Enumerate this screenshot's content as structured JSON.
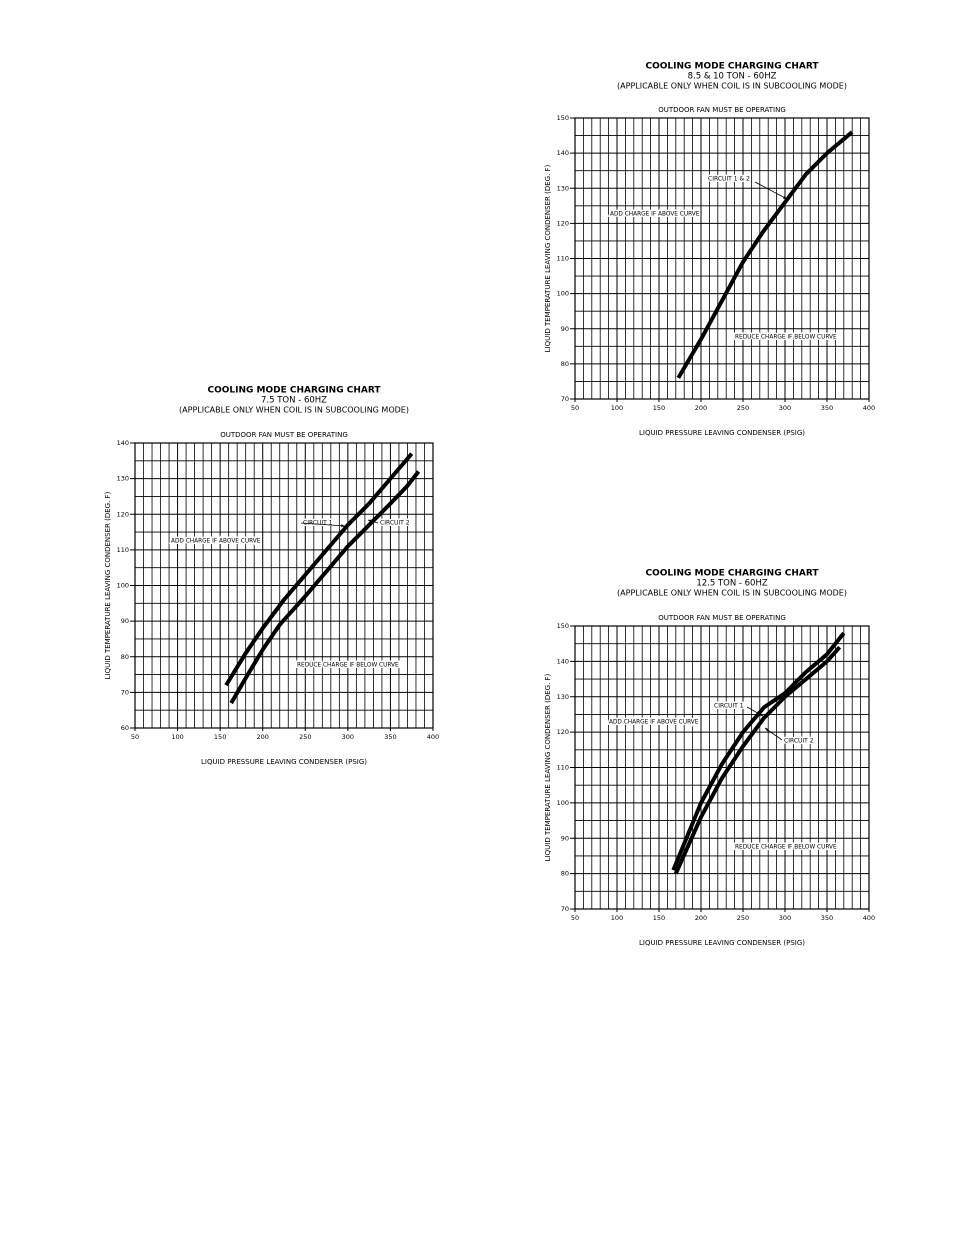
{
  "chart_data": [
    {
      "type": "line",
      "title": "COOLING MODE CHARGING CHART",
      "subtitle": "7.5 TON - 60HZ",
      "note": "(APPLICABLE ONLY WHEN COIL IS IN SUBCOOLING MODE)",
      "header_note": "OUTDOOR FAN MUST BE OPERATING",
      "xlabel": "LIQUID PRESSURE LEAVING CONDENSER (PSIG)",
      "ylabel": "LIQUID TEMPERATURE LEAVING CONDENSER (DEG. F)",
      "xlim": [
        50,
        400
      ],
      "ylim": [
        60,
        140
      ],
      "xticks": [
        50,
        100,
        150,
        200,
        250,
        300,
        350,
        400
      ],
      "yticks": [
        60,
        70,
        80,
        90,
        100,
        110,
        120,
        130,
        140
      ],
      "minor_xticks": [
        60,
        70,
        80,
        90,
        110,
        120,
        130,
        140,
        160,
        170,
        180,
        190,
        210,
        220,
        230,
        240,
        260,
        270,
        280,
        290,
        310,
        320,
        330,
        340,
        360,
        370,
        380,
        390
      ],
      "minor_yticks": [
        65,
        75,
        85,
        95,
        105,
        115,
        125,
        135
      ],
      "grid": true,
      "series": [
        {
          "name": "CIRCUIT 1",
          "color": "#000000",
          "x": [
            157,
            180,
            200,
            225,
            250,
            275,
            300,
            325,
            350,
            375
          ],
          "values": [
            72,
            81,
            88,
            96,
            103,
            110,
            117,
            123,
            130,
            137
          ]
        },
        {
          "name": "CIRCUIT 2",
          "color": "#000000",
          "x": [
            163,
            180,
            200,
            220,
            250,
            275,
            300,
            325,
            350,
            370,
            383
          ],
          "values": [
            67,
            74,
            82,
            89,
            97,
            104,
            111,
            117,
            123,
            128,
            132
          ]
        }
      ],
      "annotations": [
        "ADD CHARGE IF ABOVE CURVE",
        "REDUCE CHARGE IF BELOW CURVE"
      ]
    },
    {
      "type": "line",
      "title": "COOLING MODE CHARGING CHART",
      "subtitle": "8.5 & 10 TON - 60HZ",
      "note": "(APPLICABLE ONLY WHEN COIL IS IN SUBCOOLING MODE)",
      "header_note": "OUTDOOR FAN MUST BE OPERATING",
      "xlabel": "LIQUID PRESSURE LEAVING CONDENSER (PSIG)",
      "ylabel": "LIQUID TEMPERATURE LEAVING CONDENSER (DEG. F)",
      "xlim": [
        50,
        400
      ],
      "ylim": [
        70,
        150
      ],
      "xticks": [
        50,
        100,
        150,
        200,
        250,
        300,
        350,
        400
      ],
      "yticks": [
        70,
        80,
        90,
        100,
        110,
        120,
        130,
        140,
        150
      ],
      "minor_xticks": [
        60,
        70,
        80,
        90,
        110,
        120,
        130,
        140,
        160,
        170,
        180,
        190,
        210,
        220,
        230,
        240,
        260,
        270,
        280,
        290,
        310,
        320,
        330,
        340,
        360,
        370,
        380,
        390
      ],
      "minor_yticks": [
        75,
        85,
        95,
        105,
        115,
        125,
        135,
        145
      ],
      "grid": true,
      "series": [
        {
          "name": "CIRCUIT 1 & 2",
          "color": "#000000",
          "x": [
            173,
            200,
            225,
            250,
            275,
            300,
            325,
            350,
            380
          ],
          "values": [
            76,
            87,
            98,
            109,
            118,
            126,
            134,
            140,
            146
          ]
        }
      ],
      "annotations": [
        "ADD CHARGE IF ABOVE CURVE",
        "REDUCE CHARGE IF BELOW CURVE"
      ]
    },
    {
      "type": "line",
      "title": "COOLING MODE CHARGING CHART",
      "subtitle": "12.5 TON - 60HZ",
      "note": "(APPLICABLE ONLY WHEN COIL IS IN SUBCOOLING MODE)",
      "header_note": "OUTDOOR FAN MUST BE OPERATING",
      "xlabel": "LIQUID PRESSURE LEAVING CONDENSER (PSIG)",
      "ylabel": "LIQUID TEMPERATURE LEAVING CONDENSER (DEG. F)",
      "xlim": [
        50,
        400
      ],
      "ylim": [
        70,
        150
      ],
      "xticks": [
        50,
        100,
        150,
        200,
        250,
        300,
        350,
        400
      ],
      "yticks": [
        70,
        80,
        90,
        100,
        110,
        120,
        130,
        140,
        150
      ],
      "minor_xticks": [
        60,
        70,
        80,
        90,
        110,
        120,
        130,
        140,
        160,
        170,
        180,
        190,
        210,
        220,
        230,
        240,
        260,
        270,
        280,
        290,
        310,
        320,
        330,
        340,
        360,
        370,
        380,
        390
      ],
      "minor_yticks": [
        75,
        85,
        95,
        105,
        115,
        125,
        135,
        145
      ],
      "grid": true,
      "series": [
        {
          "name": "CIRCUIT 1",
          "color": "#000000",
          "x": [
            167,
            200,
            225,
            250,
            275,
            300,
            325,
            350,
            370
          ],
          "values": [
            81,
            100,
            111,
            120,
            127,
            131,
            137,
            142,
            148
          ]
        },
        {
          "name": "CIRCUIT 2",
          "color": "#000000",
          "x": [
            170,
            200,
            225,
            250,
            275,
            300,
            325,
            350,
            365
          ],
          "values": [
            80,
            96,
            107,
            116,
            124,
            130,
            135,
            140,
            144
          ]
        }
      ],
      "annotations": [
        "ADD CHARGE IF ABOVE CURVE",
        "REDUCE CHARGE IF BELOW CURVE"
      ]
    }
  ]
}
